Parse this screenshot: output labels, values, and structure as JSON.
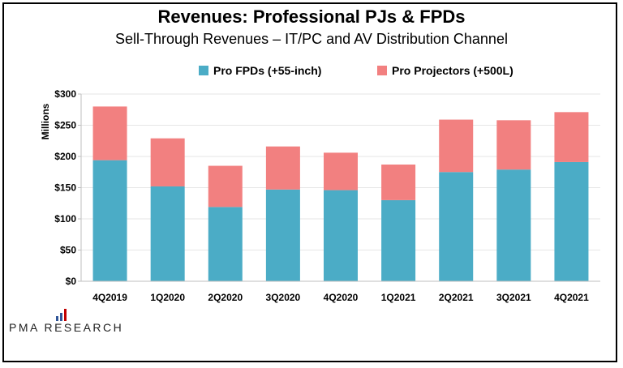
{
  "title": "Revenues:  Professional PJs & FPDs",
  "subtitle": "Sell-Through  Revenues  – IT/PC and AV Distribution Channel",
  "logo_text": "PMA RESEARCH",
  "colors": {
    "fpd": "#4bacc6",
    "projector": "#f28080",
    "grid": "#e6e6e6",
    "axis": "#bfbfbf",
    "logo_blue": "#2f5597",
    "logo_red": "#c00000"
  },
  "chart_data": {
    "type": "bar",
    "stacked": true,
    "categories": [
      "4Q2019",
      "1Q2020",
      "2Q2020",
      "3Q2020",
      "4Q2020",
      "1Q2021",
      "2Q2021",
      "3Q2021",
      "4Q2021"
    ],
    "series": [
      {
        "name": "Pro FPDs (+55-inch)",
        "values": [
          194,
          152,
          119,
          147,
          146,
          130,
          175,
          179,
          191
        ]
      },
      {
        "name": "Pro Projectors (+500L)",
        "values": [
          86,
          77,
          66,
          69,
          60,
          57,
          84,
          79,
          80
        ]
      }
    ],
    "ylabel": "Millions",
    "ylim": [
      0,
      300
    ],
    "yticks": [
      0,
      50,
      100,
      150,
      200,
      250,
      300
    ],
    "ytick_labels": [
      "$0",
      "$50",
      "$100",
      "$150",
      "$200",
      "$250",
      "$300"
    ],
    "grid": true,
    "legend_position": "top"
  }
}
